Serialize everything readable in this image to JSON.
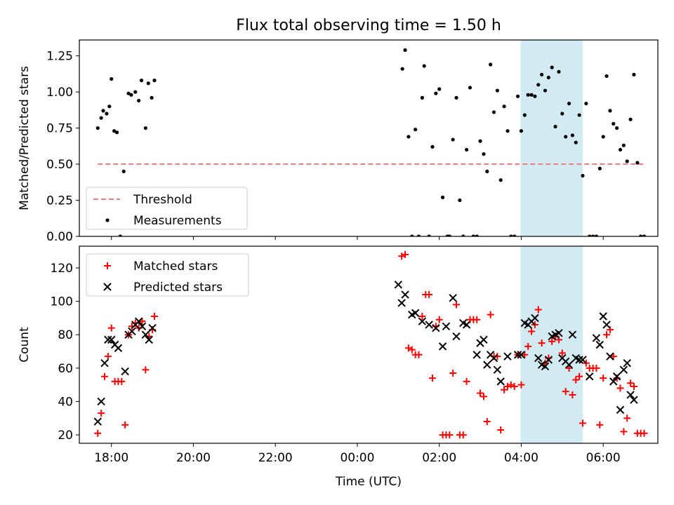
{
  "title": "Flux total observing time = 1.50 h",
  "colors": {
    "threshold": "#f08080",
    "measurement": "#000000",
    "matched": "#ff0000",
    "predicted": "#000000",
    "highlight": "#add8e6"
  },
  "chart_data": [
    {
      "type": "scatter",
      "panel": "top",
      "ylabel": "Matched/Predicted stars",
      "xlim": [
        "17:13",
        "07:20"
      ],
      "ylim": [
        0,
        1.36
      ],
      "yticks": [
        "0.00",
        "0.25",
        "0.50",
        "0.75",
        "1.00",
        "1.25"
      ],
      "highlight_span": [
        "03:59",
        "05:30"
      ],
      "legend": {
        "position": "lower-left",
        "entries": [
          {
            "label": "Threshold",
            "marker": "dashed-line",
            "color": "#f08080"
          },
          {
            "label": "Measurements",
            "marker": "dot",
            "color": "#000000"
          }
        ]
      },
      "threshold": {
        "value": 0.5,
        "x_range": [
          "17:40",
          "07:00"
        ]
      },
      "series": [
        {
          "name": "Measurements",
          "points": [
            [
              "17:40",
              0.75
            ],
            [
              "17:45",
              0.82
            ],
            [
              "17:48",
              0.87
            ],
            [
              "17:53",
              0.85
            ],
            [
              "17:57",
              0.9
            ],
            [
              "18:00",
              1.09
            ],
            [
              "18:04",
              0.73
            ],
            [
              "18:08",
              0.72
            ],
            [
              "18:13",
              0.0
            ],
            [
              "18:18",
              0.45
            ],
            [
              "18:25",
              0.99
            ],
            [
              "18:29",
              0.98
            ],
            [
              "18:35",
              1.0
            ],
            [
              "18:40",
              0.94
            ],
            [
              "18:44",
              1.08
            ],
            [
              "18:50",
              0.75
            ],
            [
              "18:54",
              1.06
            ],
            [
              "18:59",
              0.96
            ],
            [
              "19:03",
              1.08
            ],
            [
              "01:06",
              1.16
            ],
            [
              "01:10",
              1.29
            ],
            [
              "01:15",
              0.69
            ],
            [
              "01:20",
              0.0
            ],
            [
              "01:25",
              0.74
            ],
            [
              "01:30",
              0.0
            ],
            [
              "01:35",
              0.96
            ],
            [
              "01:38",
              1.18
            ],
            [
              "01:45",
              0.0
            ],
            [
              "01:50",
              0.62
            ],
            [
              "01:55",
              0.99
            ],
            [
              "02:00",
              1.02
            ],
            [
              "02:05",
              0.27
            ],
            [
              "02:12",
              0.0
            ],
            [
              "02:15",
              0.0
            ],
            [
              "02:20",
              0.67
            ],
            [
              "02:25",
              0.96
            ],
            [
              "02:30",
              0.25
            ],
            [
              "02:35",
              0.0
            ],
            [
              "02:40",
              0.6
            ],
            [
              "02:45",
              1.03
            ],
            [
              "02:50",
              0.0
            ],
            [
              "02:55",
              0.0
            ],
            [
              "03:00",
              0.66
            ],
            [
              "03:05",
              0.57
            ],
            [
              "03:10",
              0.45
            ],
            [
              "03:15",
              1.19
            ],
            [
              "03:20",
              0.86
            ],
            [
              "03:25",
              1.01
            ],
            [
              "03:30",
              0.39
            ],
            [
              "03:35",
              0.9
            ],
            [
              "03:40",
              0.73
            ],
            [
              "03:45",
              0.0
            ],
            [
              "03:50",
              0.0
            ],
            [
              "03:55",
              0.97
            ],
            [
              "04:00",
              0.73
            ],
            [
              "04:05",
              0.84
            ],
            [
              "04:10",
              0.98
            ],
            [
              "04:15",
              0.98
            ],
            [
              "04:20",
              0.97
            ],
            [
              "04:25",
              1.05
            ],
            [
              "04:30",
              1.12
            ],
            [
              "04:35",
              1.01
            ],
            [
              "04:40",
              1.1
            ],
            [
              "04:45",
              1.17
            ],
            [
              "04:50",
              0.76
            ],
            [
              "04:55",
              1.14
            ],
            [
              "05:00",
              0.85
            ],
            [
              "05:05",
              0.69
            ],
            [
              "05:10",
              0.92
            ],
            [
              "05:15",
              0.7
            ],
            [
              "05:20",
              0.65
            ],
            [
              "05:25",
              0.84
            ],
            [
              "05:30",
              0.42
            ],
            [
              "05:35",
              0.92
            ],
            [
              "05:40",
              0.0
            ],
            [
              "05:45",
              0.0
            ],
            [
              "05:50",
              0.0
            ],
            [
              "05:55",
              0.47
            ],
            [
              "06:00",
              0.69
            ],
            [
              "06:05",
              1.11
            ],
            [
              "06:10",
              0.87
            ],
            [
              "06:15",
              0.78
            ],
            [
              "06:20",
              0.75
            ],
            [
              "06:25",
              0.6
            ],
            [
              "06:30",
              0.63
            ],
            [
              "06:35",
              0.52
            ],
            [
              "06:40",
              0.81
            ],
            [
              "06:45",
              1.12
            ],
            [
              "06:50",
              0.51
            ],
            [
              "06:55",
              0.0
            ],
            [
              "07:00",
              0.0
            ]
          ]
        }
      ]
    },
    {
      "type": "scatter",
      "panel": "bottom",
      "xlabel": "Time (UTC)",
      "ylabel": "Count",
      "xlim": [
        "17:13",
        "07:20"
      ],
      "ylim": [
        15,
        133
      ],
      "xticks": [
        "18:00",
        "20:00",
        "22:00",
        "00:00",
        "02:00",
        "04:00",
        "06:00"
      ],
      "yticks": [
        "20",
        "40",
        "60",
        "80",
        "100",
        "120"
      ],
      "highlight_span": [
        "03:59",
        "05:30"
      ],
      "legend": {
        "position": "top-left",
        "entries": [
          {
            "label": "Matched stars",
            "marker": "plus",
            "color": "#ff0000"
          },
          {
            "label": "Predicted stars",
            "marker": "x",
            "color": "#000000"
          }
        ]
      },
      "series": [
        {
          "name": "Matched stars",
          "points": [
            [
              "17:40",
              21
            ],
            [
              "17:45",
              33
            ],
            [
              "17:50",
              55
            ],
            [
              "17:55",
              67
            ],
            [
              "18:00",
              84
            ],
            [
              "18:05",
              52
            ],
            [
              "18:10",
              52
            ],
            [
              "18:15",
              52
            ],
            [
              "18:20",
              26
            ],
            [
              "18:25",
              80
            ],
            [
              "18:30",
              85
            ],
            [
              "18:35",
              87
            ],
            [
              "18:40",
              84
            ],
            [
              "18:45",
              88
            ],
            [
              "18:50",
              59
            ],
            [
              "18:55",
              79
            ],
            [
              "19:00",
              83
            ],
            [
              "19:03",
              91
            ],
            [
              "01:05",
              127
            ],
            [
              "01:10",
              128
            ],
            [
              "01:15",
              72
            ],
            [
              "01:20",
              71
            ],
            [
              "01:25",
              68
            ],
            [
              "01:30",
              68
            ],
            [
              "01:35",
              91
            ],
            [
              "01:40",
              104
            ],
            [
              "01:45",
              104
            ],
            [
              "01:50",
              54
            ],
            [
              "01:55",
              85
            ],
            [
              "02:00",
              89
            ],
            [
              "02:05",
              20
            ],
            [
              "02:10",
              20
            ],
            [
              "02:15",
              20
            ],
            [
              "02:20",
              57
            ],
            [
              "02:25",
              98
            ],
            [
              "02:30",
              20
            ],
            [
              "02:35",
              20
            ],
            [
              "02:40",
              52
            ],
            [
              "02:45",
              89
            ],
            [
              "02:50",
              89
            ],
            [
              "02:55",
              89
            ],
            [
              "03:00",
              45
            ],
            [
              "03:05",
              43
            ],
            [
              "03:10",
              28
            ],
            [
              "03:15",
              92
            ],
            [
              "03:20",
              67
            ],
            [
              "03:25",
              67
            ],
            [
              "03:30",
              23
            ],
            [
              "03:35",
              47
            ],
            [
              "03:40",
              49
            ],
            [
              "03:45",
              50
            ],
            [
              "03:50",
              49
            ],
            [
              "03:55",
              68
            ],
            [
              "04:00",
              50
            ],
            [
              "04:05",
              68
            ],
            [
              "04:10",
              73
            ],
            [
              "04:15",
              82
            ],
            [
              "04:20",
              86
            ],
            [
              "04:25",
              95
            ],
            [
              "04:30",
              75
            ],
            [
              "04:35",
              63
            ],
            [
              "04:40",
              66
            ],
            [
              "04:45",
              76
            ],
            [
              "04:50",
              79
            ],
            [
              "04:55",
              77
            ],
            [
              "05:00",
              69
            ],
            [
              "05:05",
              46
            ],
            [
              "05:10",
              60
            ],
            [
              "05:15",
              44
            ],
            [
              "05:20",
              53
            ],
            [
              "05:25",
              55
            ],
            [
              "05:30",
              27
            ],
            [
              "05:35",
              63
            ],
            [
              "05:40",
              60
            ],
            [
              "05:45",
              60
            ],
            [
              "05:50",
              60
            ],
            [
              "05:55",
              26
            ],
            [
              "06:00",
              54
            ],
            [
              "06:05",
              80
            ],
            [
              "06:10",
              83
            ],
            [
              "06:15",
              67
            ],
            [
              "06:20",
              54
            ],
            [
              "06:25",
              48
            ],
            [
              "06:30",
              22
            ],
            [
              "06:35",
              30
            ],
            [
              "06:40",
              51
            ],
            [
              "06:45",
              49
            ],
            [
              "06:50",
              21
            ],
            [
              "06:55",
              21
            ],
            [
              "07:00",
              21
            ]
          ]
        },
        {
          "name": "Predicted stars",
          "points": [
            [
              "17:40",
              28
            ],
            [
              "17:45",
              40
            ],
            [
              "17:50",
              63
            ],
            [
              "17:55",
              77
            ],
            [
              "18:00",
              77
            ],
            [
              "18:05",
              74
            ],
            [
              "18:10",
              72
            ],
            [
              "18:20",
              58
            ],
            [
              "18:25",
              80
            ],
            [
              "18:30",
              82
            ],
            [
              "18:35",
              86
            ],
            [
              "18:40",
              88
            ],
            [
              "18:45",
              85
            ],
            [
              "18:50",
              80
            ],
            [
              "18:55",
              77
            ],
            [
              "19:00",
              84
            ],
            [
              "01:00",
              110
            ],
            [
              "01:05",
              99
            ],
            [
              "01:10",
              104
            ],
            [
              "01:20",
              92
            ],
            [
              "01:25",
              93
            ],
            [
              "01:35",
              88
            ],
            [
              "01:45",
              86
            ],
            [
              "01:55",
              84
            ],
            [
              "02:05",
              73
            ],
            [
              "02:10",
              85
            ],
            [
              "02:20",
              102
            ],
            [
              "02:25",
              79
            ],
            [
              "02:35",
              87
            ],
            [
              "02:40",
              86
            ],
            [
              "02:55",
              68
            ],
            [
              "03:00",
              75
            ],
            [
              "03:05",
              77
            ],
            [
              "03:10",
              62
            ],
            [
              "03:15",
              68
            ],
            [
              "03:20",
              66
            ],
            [
              "03:25",
              59
            ],
            [
              "03:30",
              52
            ],
            [
              "03:40",
              67
            ],
            [
              "03:55",
              68
            ],
            [
              "04:00",
              68
            ],
            [
              "04:05",
              87
            ],
            [
              "04:10",
              86
            ],
            [
              "04:15",
              88
            ],
            [
              "04:20",
              90
            ],
            [
              "04:25",
              66
            ],
            [
              "04:30",
              62
            ],
            [
              "04:35",
              61
            ],
            [
              "04:40",
              65
            ],
            [
              "04:45",
              79
            ],
            [
              "04:50",
              80
            ],
            [
              "04:55",
              81
            ],
            [
              "05:00",
              66
            ],
            [
              "05:05",
              64
            ],
            [
              "05:10",
              62
            ],
            [
              "05:15",
              80
            ],
            [
              "05:20",
              66
            ],
            [
              "05:25",
              65
            ],
            [
              "05:30",
              65
            ],
            [
              "05:40",
              55
            ],
            [
              "05:50",
              78
            ],
            [
              "05:55",
              74
            ],
            [
              "06:00",
              91
            ],
            [
              "06:05",
              86
            ],
            [
              "06:10",
              67
            ],
            [
              "06:15",
              52
            ],
            [
              "06:20",
              55
            ],
            [
              "06:25",
              35
            ],
            [
              "06:30",
              59
            ],
            [
              "06:35",
              63
            ],
            [
              "06:40",
              44
            ],
            [
              "06:45",
              41
            ]
          ]
        }
      ]
    }
  ]
}
